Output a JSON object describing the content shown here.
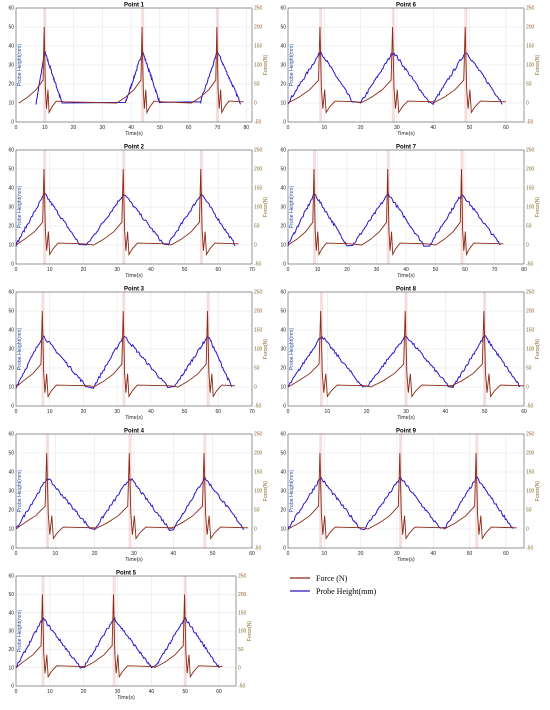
{
  "colors": {
    "force": "#8b2a16",
    "height": "#2a16c8",
    "grid": "#e2e2e2",
    "spike_bg": "#f2c8c8"
  },
  "legend": {
    "force": "Force (N)",
    "height": "Probe Height(mm)"
  },
  "chart_data": [
    {
      "type": "line",
      "title": "Point 1",
      "xlabel": "Time(s)",
      "ylabel": "Probe Height(mm)",
      "y2label": "Force(N)",
      "xlim": [
        0,
        82
      ],
      "xticks": [
        0,
        10,
        20,
        30,
        40,
        50,
        60,
        70,
        80
      ],
      "ylim": [
        0,
        60
      ],
      "yticks": [
        0,
        10,
        20,
        30,
        40,
        50,
        60
      ],
      "y2lim": [
        -50,
        250
      ],
      "y2ticks": [
        -50,
        0,
        50,
        100,
        150,
        200,
        250
      ],
      "cycles": [
        [
          7,
          10,
          16
        ],
        [
          38,
          44,
          50
        ],
        [
          64,
          70,
          78
        ]
      ],
      "series": [
        {
          "name": "Probe Height(mm)",
          "peak": 37,
          "base": 10
        },
        {
          "name": "Force (N)",
          "peak": 200,
          "base": 0
        }
      ]
    },
    {
      "type": "line",
      "title": "Point 6",
      "xlabel": "Time(s)",
      "ylabel": "Probe Height(mm)",
      "y2label": "Force(N)",
      "xlim": [
        0,
        65
      ],
      "xticks": [
        0,
        10,
        20,
        30,
        40,
        50,
        60
      ],
      "ylim": [
        0,
        60
      ],
      "yticks": [
        0,
        10,
        20,
        30,
        40,
        50,
        60
      ],
      "y2lim": [
        -50,
        250
      ],
      "y2ticks": [
        -50,
        0,
        50,
        100,
        150,
        200,
        250
      ],
      "cycles": [
        [
          0,
          9,
          18
        ],
        [
          20,
          29,
          39
        ],
        [
          40,
          49,
          59
        ]
      ],
      "series": [
        {
          "name": "Probe Height(mm)",
          "peak": 37,
          "base": 10
        },
        {
          "name": "Force (N)",
          "peak": 200,
          "base": 0
        }
      ]
    },
    {
      "type": "line",
      "title": "Point 2",
      "xlabel": "Time(s)",
      "ylabel": "Probe Height(mm)",
      "y2label": "Force(N)",
      "xlim": [
        0,
        70
      ],
      "xticks": [
        0,
        10,
        20,
        30,
        40,
        50,
        60,
        70
      ],
      "ylim": [
        0,
        60
      ],
      "yticks": [
        0,
        10,
        20,
        30,
        40,
        50,
        60
      ],
      "y2lim": [
        -50,
        250
      ],
      "y2ticks": [
        -50,
        0,
        50,
        100,
        150,
        200,
        250
      ],
      "cycles": [
        [
          0,
          8.5,
          19
        ],
        [
          21,
          32,
          44
        ],
        [
          45,
          55,
          65
        ]
      ],
      "series": [
        {
          "name": "Probe Height(mm)",
          "peak": 37,
          "base": 10
        },
        {
          "name": "Force (N)",
          "peak": 200,
          "base": 0
        }
      ]
    },
    {
      "type": "line",
      "title": "Point 7",
      "xlabel": "Time(s)",
      "ylabel": "Probe Height(mm)",
      "y2label": "Force(N)",
      "xlim": [
        0,
        80
      ],
      "xticks": [
        0,
        10,
        20,
        30,
        40,
        50,
        60,
        70,
        80
      ],
      "ylim": [
        0,
        60
      ],
      "yticks": [
        0,
        10,
        20,
        30,
        40,
        50,
        60
      ],
      "y2lim": [
        -50,
        250
      ],
      "y2ticks": [
        -50,
        0,
        50,
        100,
        150,
        200,
        250
      ],
      "cycles": [
        [
          0,
          9,
          20
        ],
        [
          22,
          34,
          46
        ],
        [
          48,
          59,
          72
        ]
      ],
      "series": [
        {
          "name": "Probe Height(mm)",
          "peak": 37,
          "base": 10
        },
        {
          "name": "Force (N)",
          "peak": 200,
          "base": 0
        }
      ]
    },
    {
      "type": "line",
      "title": "Point 3",
      "xlabel": "Time(s)",
      "ylabel": "Probe Height(mm)",
      "y2label": "Force(N)",
      "xlim": [
        0,
        70
      ],
      "xticks": [
        0,
        10,
        20,
        30,
        40,
        50,
        60,
        70
      ],
      "ylim": [
        0,
        60
      ],
      "yticks": [
        0,
        10,
        20,
        30,
        40,
        50,
        60
      ],
      "y2lim": [
        -50,
        250
      ],
      "y2ticks": [
        -50,
        0,
        50,
        100,
        150,
        200,
        250
      ],
      "cycles": [
        [
          0,
          8,
          21
        ],
        [
          23,
          32,
          45
        ],
        [
          47,
          57,
          64
        ]
      ],
      "series": [
        {
          "name": "Probe Height(mm)",
          "peak": 37,
          "base": 10
        },
        {
          "name": "Force (N)",
          "peak": 200,
          "base": 0
        }
      ]
    },
    {
      "type": "line",
      "title": "Point 8",
      "xlabel": "Time(s)",
      "ylabel": "Probe Height(mm)",
      "y2label": "Force(N)",
      "xlim": [
        0,
        60
      ],
      "xticks": [
        0,
        10,
        20,
        30,
        40,
        50,
        60
      ],
      "ylim": [
        0,
        60
      ],
      "yticks": [
        0,
        10,
        20,
        30,
        40,
        50,
        60
      ],
      "y2lim": [
        -50,
        250
      ],
      "y2ticks": [
        -50,
        0,
        50,
        100,
        150,
        200,
        250
      ],
      "cycles": [
        [
          0,
          8.5,
          19
        ],
        [
          20,
          30,
          41
        ],
        [
          42,
          50,
          59
        ]
      ],
      "series": [
        {
          "name": "Probe Height(mm)",
          "peak": 37,
          "base": 10
        },
        {
          "name": "Force (N)",
          "peak": 200,
          "base": 0
        }
      ]
    },
    {
      "type": "line",
      "title": "Point 4",
      "xlabel": "Time(s)",
      "ylabel": "Probe Height(mm)",
      "y2label": "Force(N)",
      "xlim": [
        0,
        60
      ],
      "xticks": [
        0,
        10,
        20,
        30,
        40,
        50,
        60
      ],
      "ylim": [
        0,
        60
      ],
      "yticks": [
        0,
        10,
        20,
        30,
        40,
        50,
        60
      ],
      "y2lim": [
        -50,
        250
      ],
      "y2ticks": [
        -50,
        0,
        50,
        100,
        150,
        200,
        250
      ],
      "cycles": [
        [
          0,
          8,
          19
        ],
        [
          20,
          29,
          39
        ],
        [
          40,
          48,
          58
        ]
      ],
      "series": [
        {
          "name": "Probe Height(mm)",
          "peak": 37,
          "base": 10
        },
        {
          "name": "Force (N)",
          "peak": 200,
          "base": 0
        }
      ]
    },
    {
      "type": "line",
      "title": "Point 9",
      "xlabel": "Time(s)",
      "ylabel": "Probe Height(mm)",
      "y2label": "Force(N)",
      "xlim": [
        0,
        65
      ],
      "xticks": [
        0,
        10,
        20,
        30,
        40,
        50,
        60
      ],
      "ylim": [
        0,
        60
      ],
      "yticks": [
        0,
        10,
        20,
        30,
        40,
        50,
        60
      ],
      "y2lim": [
        -50,
        250
      ],
      "y2ticks": [
        -50,
        0,
        50,
        100,
        150,
        200,
        250
      ],
      "cycles": [
        [
          0,
          9,
          20
        ],
        [
          21,
          31,
          42
        ],
        [
          43,
          52,
          62
        ]
      ],
      "series": [
        {
          "name": "Probe Height(mm)",
          "peak": 37,
          "base": 10
        },
        {
          "name": "Force (N)",
          "peak": 200,
          "base": 0
        }
      ]
    },
    {
      "type": "line",
      "title": "Point 5",
      "xlabel": "Time(s)",
      "ylabel": "Probe Height(mm)",
      "y2label": "Force(N)",
      "xlim": [
        0,
        65
      ],
      "xticks": [
        0,
        10,
        20,
        30,
        40,
        50,
        60
      ],
      "ylim": [
        0,
        60
      ],
      "yticks": [
        0,
        10,
        20,
        30,
        40,
        50,
        60
      ],
      "y2lim": [
        -50,
        250
      ],
      "y2ticks": [
        -50,
        0,
        50,
        100,
        150,
        200,
        250
      ],
      "cycles": [
        [
          0,
          8,
          19
        ],
        [
          20,
          29,
          40
        ],
        [
          41,
          50,
          60
        ]
      ],
      "series": [
        {
          "name": "Probe Height(mm)",
          "peak": 37,
          "base": 10
        },
        {
          "name": "Force (N)",
          "peak": 200,
          "base": 0
        }
      ]
    }
  ]
}
